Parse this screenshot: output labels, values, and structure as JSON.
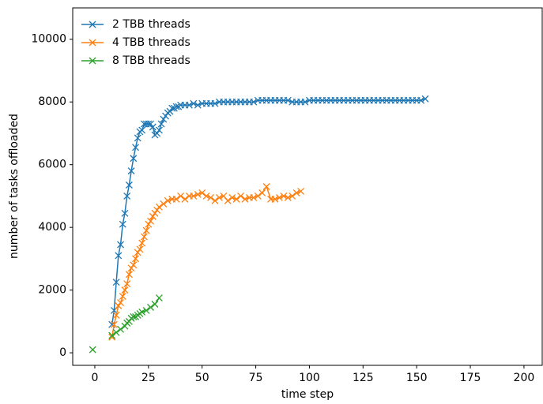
{
  "chart_data": {
    "type": "line",
    "xlabel": "time step",
    "ylabel": "number of tasks offloaded",
    "xlim": [
      -10.3,
      208.5
    ],
    "ylim": [
      -400,
      11000
    ],
    "xticks": [
      0,
      25,
      50,
      75,
      100,
      125,
      150,
      175,
      200
    ],
    "yticks": [
      0,
      2000,
      4000,
      6000,
      8000,
      10000
    ],
    "legend": "upper left",
    "grid": false,
    "series": [
      {
        "name": "2 TBB threads",
        "color": "#1f77b4",
        "x": [
          8,
          9,
          10,
          11,
          12,
          13,
          14,
          15,
          16,
          17,
          18,
          19,
          20,
          21,
          22,
          23,
          24,
          25,
          26,
          27,
          28,
          29,
          30,
          31,
          32,
          33,
          34,
          35,
          36,
          37,
          38,
          39,
          40,
          42,
          44,
          46,
          48,
          50,
          52,
          54,
          56,
          58,
          60,
          62,
          64,
          66,
          68,
          70,
          72,
          74,
          76,
          78,
          80,
          82,
          84,
          86,
          88,
          90,
          92,
          94,
          96,
          98,
          100,
          102,
          104,
          106,
          108,
          110,
          112,
          114,
          116,
          118,
          120,
          122,
          124,
          126,
          128,
          130,
          132,
          134,
          136,
          138,
          140,
          142,
          144,
          146,
          148,
          150,
          152,
          154
        ],
        "values": [
          900,
          1350,
          2250,
          3100,
          3450,
          4100,
          4450,
          5000,
          5350,
          5800,
          6200,
          6550,
          6850,
          7050,
          7100,
          7300,
          7300,
          7300,
          7300,
          7200,
          6950,
          7000,
          7100,
          7300,
          7450,
          7550,
          7650,
          7700,
          7800,
          7800,
          7850,
          7850,
          7900,
          7900,
          7900,
          7950,
          7900,
          7950,
          7950,
          7950,
          7950,
          8000,
          8000,
          8000,
          8000,
          8000,
          8000,
          8000,
          8000,
          8000,
          8050,
          8050,
          8050,
          8050,
          8050,
          8050,
          8050,
          8050,
          8000,
          8000,
          8000,
          8000,
          8050,
          8050,
          8050,
          8050,
          8050,
          8050,
          8050,
          8050,
          8050,
          8050,
          8050,
          8050,
          8050,
          8050,
          8050,
          8050,
          8050,
          8050,
          8050,
          8050,
          8050,
          8050,
          8050,
          8050,
          8050,
          8050,
          8050,
          8100
        ]
      },
      {
        "name": "4 TBB threads",
        "color": "#ff7f0e",
        "x": [
          8,
          9,
          10,
          11,
          12,
          13,
          14,
          15,
          16,
          17,
          18,
          19,
          20,
          21,
          22,
          23,
          24,
          25,
          26,
          27,
          28,
          29,
          30,
          32,
          34,
          36,
          38,
          40,
          42,
          44,
          46,
          48,
          50,
          52,
          54,
          56,
          58,
          60,
          62,
          64,
          66,
          68,
          70,
          72,
          74,
          76,
          78,
          80,
          82,
          84,
          86,
          88,
          90,
          92,
          94,
          96
        ],
        "values": [
          500,
          900,
          1200,
          1500,
          1600,
          1800,
          2000,
          2200,
          2500,
          2700,
          2800,
          3000,
          3200,
          3300,
          3500,
          3700,
          3900,
          4100,
          4200,
          4350,
          4450,
          4550,
          4650,
          4750,
          4850,
          4900,
          4900,
          5000,
          4900,
          5000,
          5000,
          5050,
          5100,
          5000,
          4950,
          4850,
          4950,
          5000,
          4850,
          4950,
          4900,
          5000,
          4900,
          4950,
          4950,
          5000,
          5100,
          5300,
          4900,
          4900,
          4950,
          5000,
          4950,
          5000,
          5100,
          5150
        ]
      },
      {
        "name": "8 TBB threads",
        "color": "#2ca02c",
        "x": [
          -1,
          0,
          8,
          10,
          12,
          14,
          15,
          16,
          17,
          18,
          19,
          20,
          21,
          22,
          24,
          26,
          28,
          30
        ],
        "values": [
          100,
          null,
          550,
          650,
          750,
          850,
          950,
          1000,
          1100,
          1150,
          1150,
          1200,
          1250,
          1300,
          1350,
          1450,
          1550,
          1750
        ]
      }
    ]
  }
}
